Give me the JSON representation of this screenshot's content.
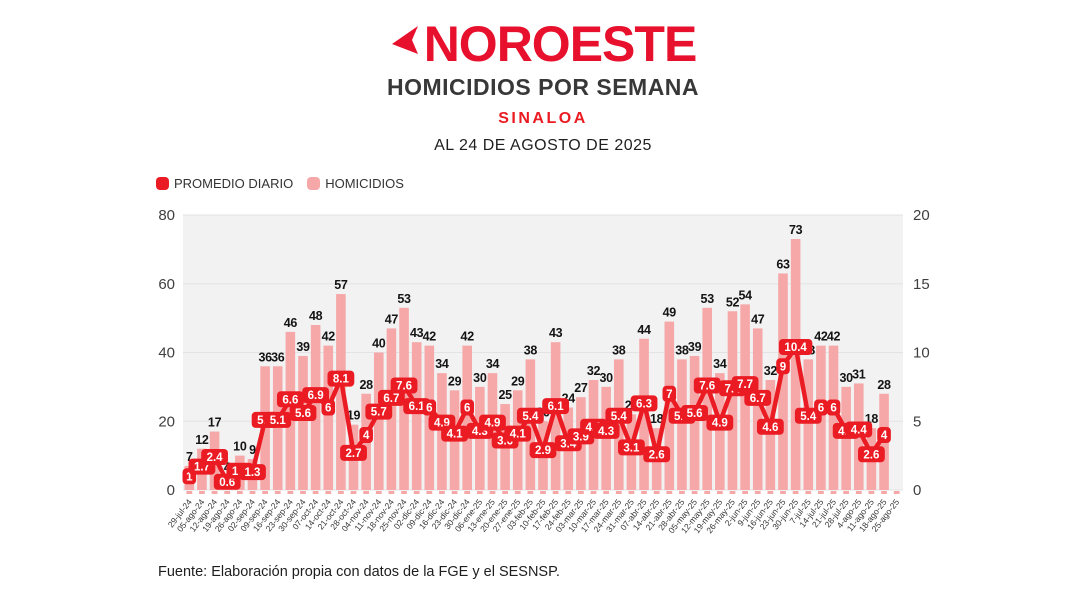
{
  "header": {
    "brand": "NOROESTE",
    "title": "HOMICIDIOS POR SEMANA",
    "subtitle": "SINALOA",
    "asof": "AL 24 DE AGOSTO DE 2025"
  },
  "legend": [
    {
      "label": "PROMEDIO DIARIO",
      "color": "#EB1B23"
    },
    {
      "label": "HOMICIDIOS",
      "color": "#F6A8A8"
    }
  ],
  "footer": {
    "source": "Fuente: Elaboración propia con datos de la FGE y el SESNSP."
  },
  "colors": {
    "plot_bg": "#F2F2F3",
    "grid": "#E3E3E5",
    "bar": "#F6A8A8",
    "bar_label": "#141414",
    "line": "#EB1B23",
    "chip_text": "#FFFFFF",
    "axis_text": "#3F3F3F",
    "x_label": "#363636"
  },
  "chart_data": {
    "type": "bar+line",
    "title": "HOMICIDIOS POR SEMANA — SINALOA",
    "categories": [
      "29-jul-24",
      "05-ago-24",
      "12-ago-24",
      "19-ago-24",
      "26-ago-24",
      "02-sep-24",
      "09-sep-24",
      "16-sep-24",
      "23-sep-24",
      "30-sep-24",
      "07-oct-24",
      "14-oct-24",
      "21-oct-24",
      "28-oct-24",
      "04-nov-24",
      "11-nov-24",
      "18-nov-24",
      "25-nov-24",
      "02-dic-24",
      "09-dic-24",
      "16-dic-24",
      "23-dic-24",
      "30-dic-24",
      "06-ene-25",
      "13-ene-25",
      "20-ene-25",
      "27-ene-25",
      "03-feb-25",
      "10-feb-25",
      "17-feb-25",
      "24-feb-25",
      "03-mar-25",
      "10-mar-25",
      "17-mar-25",
      "24-mar-25",
      "31-mar-25",
      "07-abr-25",
      "14-abr-25",
      "21-abr-25",
      "28-abr-25",
      "05-may-25",
      "12-may-25",
      "19-may-25",
      "26-may-25",
      "2-jun-25",
      "9-jun-25",
      "16-jun-25",
      "23-jun-25",
      "30-jun-25",
      "7-jul-25",
      "14-jul-25",
      "21-jul-25",
      "28-jul-25",
      "4-ago-25",
      "11-ago-25",
      "18-ago-25",
      "25-ago-25"
    ],
    "series": [
      {
        "name": "HOMICIDIOS",
        "type": "bar",
        "axis": "left",
        "values": [
          7,
          12,
          17,
          4,
          10,
          9,
          36,
          36,
          46,
          39,
          48,
          42,
          57,
          19,
          28,
          40,
          47,
          53,
          43,
          42,
          34,
          29,
          42,
          30,
          34,
          25,
          29,
          38,
          20,
          43,
          24,
          27,
          32,
          30,
          38,
          22,
          44,
          18,
          49,
          38,
          39,
          53,
          34,
          52,
          54,
          47,
          32,
          63,
          73,
          38,
          42,
          42,
          30,
          31,
          18,
          28,
          null
        ]
      },
      {
        "name": "PROMEDIO DIARIO",
        "type": "line",
        "axis": "right",
        "values": [
          1,
          1.7,
          2.4,
          0.6,
          1.4,
          1.3,
          5.1,
          5.1,
          6.6,
          5.6,
          6.9,
          6,
          8.1,
          2.7,
          4,
          5.7,
          6.7,
          7.6,
          6.1,
          6,
          4.9,
          4.1,
          6,
          4.3,
          4.9,
          3.6,
          4.1,
          5.4,
          2.9,
          6.1,
          3.4,
          3.9,
          4.6,
          4.3,
          5.4,
          3.1,
          6.3,
          2.6,
          7,
          5.4,
          5.6,
          7.6,
          4.9,
          7.4,
          7.7,
          6.7,
          4.6,
          9,
          10.4,
          5.4,
          6,
          6,
          4.3,
          4.4,
          2.6,
          4,
          null
        ]
      }
    ],
    "left_axis": {
      "ticks": [
        0,
        20,
        40,
        60,
        80
      ],
      "min": 0,
      "max": 80
    },
    "right_axis": {
      "ticks": [
        0,
        5,
        10,
        15,
        20
      ],
      "min": 0,
      "max": 20
    },
    "grid": true,
    "legend_position": "top-left"
  }
}
